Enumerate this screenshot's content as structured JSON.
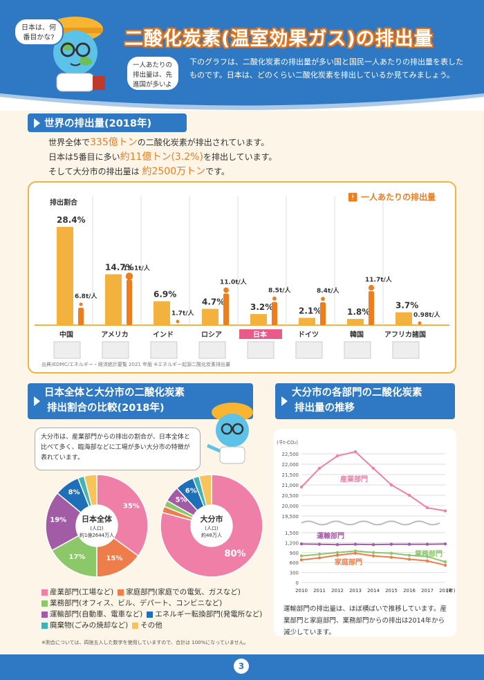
{
  "header": {
    "title": "二酸化炭素(温室効果ガス)の排出量",
    "bubble_top": "日本は、何番目かな?",
    "bubble_side": "一人あたりの排出量は、先進国が多いよ",
    "intro": "下のグラフは、二酸化炭素の排出量が多い国と国民一人あたりの排出量を表したものです。日本は、どのくらい二酸化炭素を排出しているか見てみましょう。"
  },
  "world": {
    "heading": "世界の排出量(2018年)",
    "line1_pre": "世界全体で",
    "line1_em": "335億トン",
    "line1_post": "の二酸化炭素が排出されています。",
    "line2_pre": "日本は5番目に多い",
    "line2_em": "約11億トン(3.2%)",
    "line2_post": "を排出しています。",
    "line3_pre": "そして大分市の排出量は ",
    "line3_em": "約2500万トン",
    "line3_post": "です。",
    "legend_person": "一人あたりの排出量",
    "share_label": "排出割合",
    "per_capita_label": "一人当たりの排出量",
    "source": "出典)EDMC/エネルギー・経済統計要覧 2021 年版 ※エネルギー起源二酸化炭素排出量"
  },
  "chart_data": [
    {
      "type": "bar",
      "categories": [
        "中国",
        "アメリカ",
        "インド",
        "ロシア",
        "日本",
        "ドイツ",
        "韓国",
        "アフリカ諸国"
      ],
      "series": [
        {
          "name": "排出割合",
          "values": [
            28.4,
            14.7,
            6.9,
            4.7,
            3.2,
            2.1,
            1.8,
            3.7
          ],
          "unit": "%"
        },
        {
          "name": "一人当たりの排出量",
          "values": [
            6.8,
            15.1,
            1.7,
            11.0,
            8.5,
            8.4,
            11.7,
            0.98
          ],
          "unit": "t/人"
        }
      ],
      "value_labels_share": [
        "28.4%",
        "14.7%",
        "6.9%",
        "4.7%",
        "3.2%",
        "2.1%",
        "1.8%",
        "3.7%"
      ],
      "value_labels_capita": [
        "6.8t/人",
        "15.1t/人",
        "1.7t/人",
        "11.0t/人",
        "8.5t/人",
        "8.4t/人",
        "11.7t/人",
        "0.98t/人"
      ],
      "highlight": "日本",
      "colors": {
        "bar": "#f2b23d",
        "person": "#ee7d1e",
        "highlight_label": "#e85a8a"
      }
    },
    {
      "type": "pie",
      "title": "日本全体",
      "subtitle": "(人口)",
      "population": "約1億2644万人",
      "slices": [
        {
          "label": "産業部門",
          "value": 35,
          "color": "#f07fa7"
        },
        {
          "label": "家庭部門",
          "value": 15,
          "color": "#ee7d4b"
        },
        {
          "label": "業務部門",
          "value": 17,
          "color": "#8cc76a"
        },
        {
          "label": "運輸部門",
          "value": 19,
          "color": "#a25ca6"
        },
        {
          "label": "エネルギー転換部門",
          "value": 8,
          "color": "#1f6fb8"
        },
        {
          "label": "廃棄物",
          "value": 2,
          "color": "#3fb3b6"
        },
        {
          "label": "その他",
          "value": 4,
          "color": "#f7c45c"
        }
      ]
    },
    {
      "type": "pie",
      "title": "大分市",
      "subtitle": "(人口)",
      "population": "約48万人",
      "slices": [
        {
          "label": "産業部門",
          "value": 80,
          "color": "#f07fa7"
        },
        {
          "label": "家庭部門",
          "value": 2,
          "color": "#ee7d4b"
        },
        {
          "label": "業務部門",
          "value": 2,
          "color": "#8cc76a"
        },
        {
          "label": "運輸部門",
          "value": 5,
          "color": "#a25ca6"
        },
        {
          "label": "エネルギー転換部門",
          "value": 6,
          "color": "#1f6fb8"
        },
        {
          "label": "廃棄物",
          "value": 2,
          "color": "#3fb3b6"
        },
        {
          "label": "その他",
          "value": 4,
          "color": "#f7c45c"
        }
      ]
    },
    {
      "type": "line",
      "ylabel": "(千t-CO₂)",
      "x": [
        2010,
        2011,
        2012,
        2013,
        2014,
        2015,
        2016,
        2017,
        2018
      ],
      "xunit": "(年)",
      "y_ticks_upper": [
        19500,
        20000,
        20500,
        21000,
        21500,
        22000,
        22500
      ],
      "y_ticks_lower": [
        0,
        300,
        600,
        900,
        1200,
        1500
      ],
      "series": [
        {
          "name": "産業部門",
          "values": [
            20900,
            21800,
            22400,
            22600,
            21800,
            21000,
            20500,
            19900,
            19750
          ],
          "color": "#f07fa7"
        },
        {
          "name": "運輸部門",
          "values": [
            1160,
            1150,
            1140,
            1150,
            1140,
            1150,
            1150,
            1150,
            1160
          ],
          "color": "#a25ca6"
        },
        {
          "name": "業務部門",
          "values": [
            800,
            850,
            900,
            950,
            900,
            880,
            820,
            780,
            620
          ],
          "color": "#8cc76a"
        },
        {
          "name": "家庭部門",
          "values": [
            680,
            740,
            820,
            880,
            800,
            760,
            700,
            650,
            520
          ],
          "color": "#ee7d4b"
        }
      ]
    }
  ],
  "compare": {
    "heading_line1": "日本全体と大分市の二酸化炭素",
    "heading_line2": "排出割合の比較(2018年)",
    "bubble": "大分市は、産業部門からの排出の割合が、日本全体と比べて多く、臨海部などに工場が多い大分市の特徴が表れています。",
    "legend": [
      "産業部門(工場など)",
      "家庭部門(家庭での電気、ガスなど)",
      "業務部門(オフィス、ビル、デパート、コンビニなど)",
      "運輸部門(自動車、電車など)",
      "エネルギー転換部門(発電所など)",
      "廃棄物(ごみの焼却など)",
      "その他"
    ],
    "note": "※割合については、四捨五入した数字を使用していますので、合計は 100%になっていません。"
  },
  "trend": {
    "heading_line1": "大分市の各部門の二酸化炭素",
    "heading_line2": "排出量の推移",
    "note": "運輸部門の排出量は、ほぼ横ばいで推移しています。産業部門と家庭部門、業務部門からの排出は2014年から減少しています。"
  },
  "footer": {
    "page": "3"
  }
}
